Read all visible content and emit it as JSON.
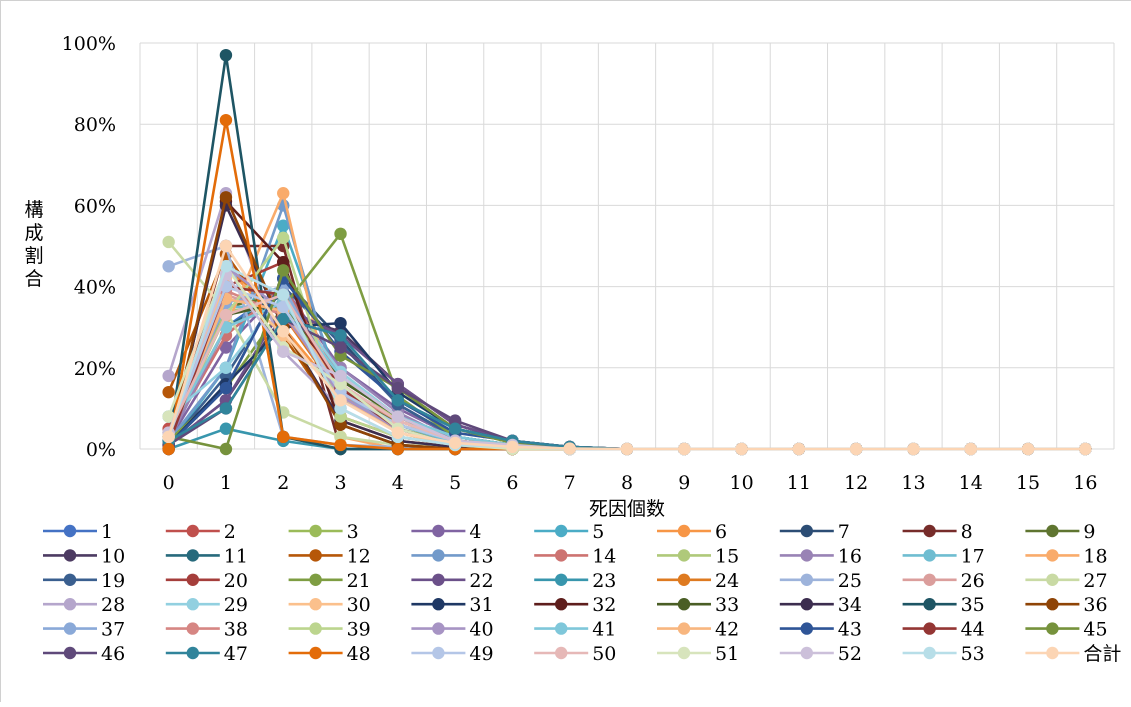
{
  "chart_data": {
    "type": "line",
    "title": "",
    "xlabel": "死因個数",
    "ylabel": "構成割合",
    "categories": [
      "0",
      "1",
      "2",
      "3",
      "4",
      "5",
      "6",
      "7",
      "8",
      "9",
      "10",
      "11",
      "12",
      "13",
      "14",
      "15",
      "16"
    ],
    "ylim": [
      0,
      100
    ],
    "ytick_labels": [
      "0%",
      "20%",
      "40%",
      "60%",
      "80%",
      "100%"
    ],
    "grid": true,
    "legend_position": "bottom",
    "series": [
      {
        "name": "1",
        "color": "#4472C4",
        "values": [
          2,
          30,
          40,
          15,
          8,
          3,
          1,
          0.5,
          0,
          0,
          0,
          0,
          0,
          0,
          0,
          0,
          0
        ]
      },
      {
        "name": "2",
        "color": "#C0504D",
        "values": [
          5,
          35,
          35,
          15,
          7,
          2,
          0.5,
          0.2,
          0,
          0,
          0,
          0,
          0,
          0,
          0,
          0,
          0
        ]
      },
      {
        "name": "3",
        "color": "#9BBB59",
        "values": [
          3,
          40,
          38,
          12,
          5,
          1.5,
          0.5,
          0,
          0,
          0,
          0,
          0,
          0,
          0,
          0,
          0,
          0
        ]
      },
      {
        "name": "4",
        "color": "#8064A2",
        "values": [
          2,
          25,
          40,
          20,
          10,
          3,
          1,
          0.2,
          0,
          0,
          0,
          0,
          0,
          0,
          0,
          0,
          0
        ]
      },
      {
        "name": "5",
        "color": "#4BACC6",
        "values": [
          1,
          20,
          55,
          15,
          6,
          2,
          1,
          0,
          0,
          0,
          0,
          0,
          0,
          0,
          0,
          0,
          0
        ]
      },
      {
        "name": "6",
        "color": "#F79646",
        "values": [
          4,
          45,
          30,
          13,
          6,
          2,
          0.5,
          0,
          0,
          0,
          0,
          0,
          0,
          0,
          0,
          0,
          0
        ]
      },
      {
        "name": "7",
        "color": "#2C4D75",
        "values": [
          1,
          15,
          42,
          27,
          11,
          3,
          1,
          0.3,
          0,
          0,
          0,
          0,
          0,
          0,
          0,
          0,
          0
        ]
      },
      {
        "name": "8",
        "color": "#772C2A",
        "values": [
          0,
          50,
          50,
          0,
          0,
          0,
          0,
          0,
          0,
          0,
          0,
          0,
          0,
          0,
          0,
          0,
          0
        ]
      },
      {
        "name": "9",
        "color": "#5F7530",
        "values": [
          3,
          35,
          38,
          16,
          6,
          1.5,
          0.5,
          0,
          0,
          0,
          0,
          0,
          0,
          0,
          0,
          0,
          0
        ]
      },
      {
        "name": "10",
        "color": "#4D3B62",
        "values": [
          1,
          12,
          33,
          29,
          16,
          6,
          2,
          0.5,
          0,
          0,
          0,
          0,
          0,
          0,
          0,
          0,
          0
        ]
      },
      {
        "name": "11",
        "color": "#276A7C",
        "values": [
          4,
          30,
          38,
          17,
          8,
          2,
          1,
          0,
          0,
          0,
          0,
          0,
          0,
          0,
          0,
          0,
          0
        ]
      },
      {
        "name": "12",
        "color": "#B65708",
        "values": [
          14,
          48,
          28,
          7,
          2,
          0.5,
          0,
          0,
          0,
          0,
          0,
          0,
          0,
          0,
          0,
          0,
          0
        ]
      },
      {
        "name": "13",
        "color": "#729ACA",
        "values": [
          2,
          20,
          60,
          12,
          5,
          1,
          0,
          0,
          0,
          0,
          0,
          0,
          0,
          0,
          0,
          0,
          0
        ]
      },
      {
        "name": "14",
        "color": "#CD7371",
        "values": [
          3,
          28,
          40,
          18,
          8,
          2,
          1,
          0,
          0,
          0,
          0,
          0,
          0,
          0,
          0,
          0,
          0
        ]
      },
      {
        "name": "15",
        "color": "#AFC97A",
        "values": [
          3,
          34,
          35,
          18,
          7,
          2,
          1,
          0,
          0,
          0,
          0,
          0,
          0,
          0,
          0,
          0,
          0
        ]
      },
      {
        "name": "16",
        "color": "#9983B5",
        "values": [
          2,
          30,
          36,
          20,
          9,
          2,
          1,
          0,
          0,
          0,
          0,
          0,
          0,
          0,
          0,
          0,
          0
        ]
      },
      {
        "name": "17",
        "color": "#6FBDD1",
        "values": [
          8,
          35,
          35,
          14,
          6,
          1.5,
          0.5,
          0,
          0,
          0,
          0,
          0,
          0,
          0,
          0,
          0,
          0
        ]
      },
      {
        "name": "18",
        "color": "#F9AB6B",
        "values": [
          4,
          30,
          63,
          3,
          0,
          0,
          0,
          0,
          0,
          0,
          0,
          0,
          0,
          0,
          0,
          0,
          0
        ]
      },
      {
        "name": "19",
        "color": "#3A5F8F",
        "values": [
          1,
          18,
          40,
          26,
          11,
          3,
          1,
          0,
          0,
          0,
          0,
          0,
          0,
          0,
          0,
          0,
          0
        ]
      },
      {
        "name": "20",
        "color": "#A53E3B",
        "values": [
          2,
          40,
          46,
          8,
          3,
          1,
          0,
          0,
          0,
          0,
          0,
          0,
          0,
          0,
          0,
          0,
          0
        ]
      },
      {
        "name": "21",
        "color": "#7E9D42",
        "values": [
          2,
          15,
          35,
          53,
          13,
          3,
          1,
          0,
          0,
          0,
          0,
          0,
          0,
          0,
          0,
          0,
          0
        ]
      },
      {
        "name": "22",
        "color": "#6B5089",
        "values": [
          1,
          12,
          35,
          28,
          16,
          6,
          2,
          0.5,
          0,
          0,
          0,
          0,
          0,
          0,
          0,
          0,
          0
        ]
      },
      {
        "name": "23",
        "color": "#3896AD",
        "values": [
          0,
          5,
          2,
          0,
          0,
          0,
          0,
          0,
          0,
          0,
          0,
          0,
          0,
          0,
          0,
          0,
          0
        ]
      },
      {
        "name": "24",
        "color": "#DE7A20",
        "values": [
          3,
          45,
          33,
          13,
          5,
          1,
          0.5,
          0,
          0,
          0,
          0,
          0,
          0,
          0,
          0,
          0,
          0
        ]
      },
      {
        "name": "25",
        "color": "#9DB3DB",
        "values": [
          45,
          50,
          3,
          1,
          0.5,
          0,
          0,
          0,
          0,
          0,
          0,
          0,
          0,
          0,
          0,
          0,
          0
        ]
      },
      {
        "name": "26",
        "color": "#DB9E9C",
        "values": [
          4,
          38,
          33,
          15,
          7,
          2,
          1,
          0,
          0,
          0,
          0,
          0,
          0,
          0,
          0,
          0,
          0
        ]
      },
      {
        "name": "27",
        "color": "#C9DAA4",
        "values": [
          51,
          34,
          9,
          3,
          1,
          0.5,
          0,
          0,
          0,
          0,
          0,
          0,
          0,
          0,
          0,
          0,
          0
        ]
      },
      {
        "name": "28",
        "color": "#B5A6CC",
        "values": [
          18,
          63,
          24,
          10,
          3,
          1,
          0,
          0,
          0,
          0,
          0,
          0,
          0,
          0,
          0,
          0,
          0
        ]
      },
      {
        "name": "29",
        "color": "#92D0E0",
        "values": [
          8,
          20,
          38,
          19,
          8,
          3,
          1,
          0,
          0,
          0,
          0,
          0,
          0,
          0,
          0,
          0,
          0
        ]
      },
      {
        "name": "30",
        "color": "#FBC08C",
        "values": [
          3,
          42,
          28,
          13,
          4,
          1,
          0.5,
          0,
          0,
          0,
          0,
          0,
          0,
          0,
          0,
          0,
          0
        ]
      },
      {
        "name": "31",
        "color": "#1F3864",
        "values": [
          1,
          16,
          30,
          31,
          14,
          5,
          2,
          0.5,
          0,
          0,
          0,
          0,
          0,
          0,
          0,
          0,
          0
        ]
      },
      {
        "name": "32",
        "color": "#5E1E1C",
        "values": [
          0,
          61,
          46,
          6,
          1,
          0,
          0,
          0,
          0,
          0,
          0,
          0,
          0,
          0,
          0,
          0,
          0
        ]
      },
      {
        "name": "33",
        "color": "#4A5E25",
        "values": [
          3,
          33,
          36,
          17,
          8,
          2,
          1,
          0,
          0,
          0,
          0,
          0,
          0,
          0,
          0,
          0,
          0
        ]
      },
      {
        "name": "34",
        "color": "#3C2D4F",
        "values": [
          1,
          60,
          30,
          7,
          2,
          0.5,
          0,
          0,
          0,
          0,
          0,
          0,
          0,
          0,
          0,
          0,
          0
        ]
      },
      {
        "name": "35",
        "color": "#1E5564",
        "values": [
          1,
          97,
          3,
          0,
          0,
          0,
          0,
          0,
          0,
          0,
          0,
          0,
          0,
          0,
          0,
          0,
          0
        ]
      },
      {
        "name": "36",
        "color": "#8F4406",
        "values": [
          1,
          62,
          30,
          6,
          1,
          0,
          0,
          0,
          0,
          0,
          0,
          0,
          0,
          0,
          0,
          0,
          0
        ]
      },
      {
        "name": "37",
        "color": "#8AA9D8",
        "values": [
          3,
          36,
          40,
          14,
          5,
          1,
          0.5,
          0,
          0,
          0,
          0,
          0,
          0,
          0,
          0,
          0,
          0
        ]
      },
      {
        "name": "38",
        "color": "#D68683",
        "values": [
          3,
          39,
          33,
          15,
          7,
          2,
          1,
          0,
          0,
          0,
          0,
          0,
          0,
          0,
          0,
          0,
          0
        ]
      },
      {
        "name": "39",
        "color": "#BCD58E",
        "values": [
          3,
          33,
          52,
          8,
          3,
          1,
          0,
          0,
          0,
          0,
          0,
          0,
          0,
          0,
          0,
          0,
          0
        ]
      },
      {
        "name": "40",
        "color": "#A794C4",
        "values": [
          2,
          45,
          34,
          13,
          5,
          1,
          0.5,
          0,
          0,
          0,
          0,
          0,
          0,
          0,
          0,
          0,
          0
        ]
      },
      {
        "name": "41",
        "color": "#7FC7DA",
        "values": [
          4,
          30,
          36,
          18,
          8,
          3,
          1,
          0,
          0,
          0,
          0,
          0,
          0,
          0,
          0,
          0,
          0
        ]
      },
      {
        "name": "42",
        "color": "#F8B67F",
        "values": [
          3,
          37,
          34,
          16,
          7,
          2,
          1,
          0,
          0,
          0,
          0,
          0,
          0,
          0,
          0,
          0,
          0
        ]
      },
      {
        "name": "43",
        "color": "#2F5597",
        "values": [
          1,
          15,
          42,
          24,
          12,
          4,
          2,
          0.5,
          0,
          0,
          0,
          0,
          0,
          0,
          0,
          0,
          0
        ]
      },
      {
        "name": "44",
        "color": "#943634",
        "values": [
          1,
          40,
          38,
          15,
          5,
          1,
          0.5,
          0,
          0,
          0,
          0,
          0,
          0,
          0,
          0,
          0,
          0
        ]
      },
      {
        "name": "45",
        "color": "#76923C",
        "values": [
          3,
          0,
          44,
          23,
          15,
          5,
          1.5,
          0.5,
          0,
          0,
          0,
          0,
          0,
          0,
          0,
          0,
          0
        ]
      },
      {
        "name": "46",
        "color": "#5F497A",
        "values": [
          1,
          10,
          32,
          25,
          15,
          7,
          2,
          0.5,
          0,
          0,
          0,
          0,
          0,
          0,
          0,
          0,
          0
        ]
      },
      {
        "name": "47",
        "color": "#31849B",
        "values": [
          2,
          10,
          32,
          28,
          12,
          5,
          2,
          0.5,
          0,
          0,
          0,
          0,
          0,
          0,
          0,
          0,
          0
        ]
      },
      {
        "name": "48",
        "color": "#E36C09",
        "values": [
          0,
          81,
          3,
          1,
          0,
          0,
          0,
          0,
          0,
          0,
          0,
          0,
          0,
          0,
          0,
          0,
          0
        ]
      },
      {
        "name": "49",
        "color": "#B4C6E7",
        "values": [
          3,
          40,
          35,
          14,
          6,
          2,
          0.5,
          0,
          0,
          0,
          0,
          0,
          0,
          0,
          0,
          0,
          0
        ]
      },
      {
        "name": "50",
        "color": "#E6B8B7",
        "values": [
          4,
          33,
          38,
          16,
          7,
          2,
          0.5,
          0,
          0,
          0,
          0,
          0,
          0,
          0,
          0,
          0,
          0
        ]
      },
      {
        "name": "51",
        "color": "#D7E4BC",
        "values": [
          8,
          45,
          25,
          16,
          5,
          1,
          0,
          0,
          0,
          0,
          0,
          0,
          0,
          0,
          0,
          0,
          0
        ]
      },
      {
        "name": "52",
        "color": "#CCC0DA",
        "values": [
          4,
          43,
          24,
          18,
          8,
          2,
          1,
          0,
          0,
          0,
          0,
          0,
          0,
          0,
          0,
          0,
          0
        ]
      },
      {
        "name": "53",
        "color": "#B7DEE8",
        "values": [
          3,
          45,
          38,
          10,
          3,
          1,
          0.5,
          0,
          0,
          0,
          0,
          0,
          0,
          0,
          0,
          0,
          0
        ]
      },
      {
        "name": "合計",
        "color": "#FCD5B4",
        "values": [
          3,
          50,
          29,
          12,
          4,
          1.5,
          0.5,
          0.1,
          0,
          0,
          0,
          0,
          0,
          0,
          0,
          0,
          0
        ]
      }
    ]
  }
}
